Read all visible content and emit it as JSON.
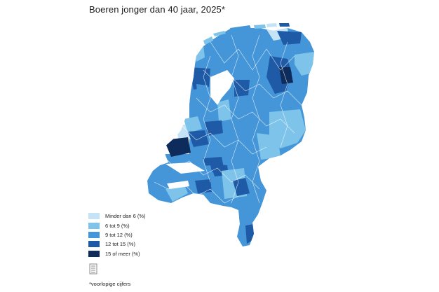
{
  "title": "Boeren jonger dan 40 jaar, 2025*",
  "footnote": "*voorlopige cijfers",
  "legend": [
    {
      "label": "Minder dan 6 (%)",
      "color": "#c5e3f6"
    },
    {
      "label": "6 tot 9 (%)",
      "color": "#7ec4ea"
    },
    {
      "label": "9 tot 12 (%)",
      "color": "#4596d8"
    },
    {
      "label": "12 tot 15 (%)",
      "color": "#1f5aa6"
    },
    {
      "label": "15 of meer (%)",
      "color": "#0d2b5b"
    }
  ],
  "logo_icon": "cbs-logo-icon"
}
